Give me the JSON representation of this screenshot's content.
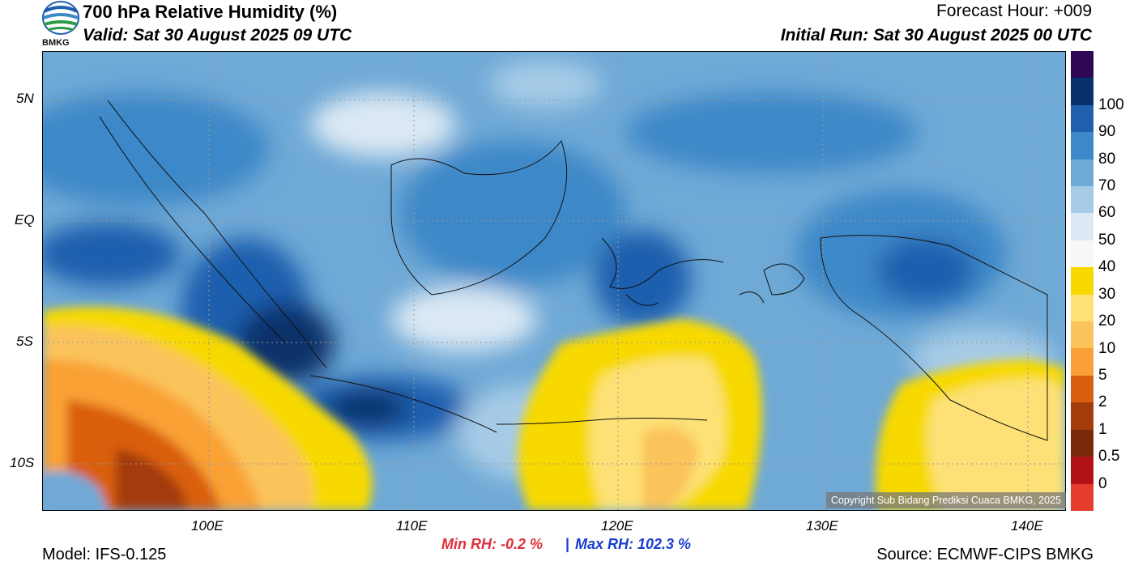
{
  "header": {
    "title": "700 hPa Relative Humidity (%)",
    "valid": "Valid: Sat 30 August 2025 09 UTC",
    "forecast_hour": "Forecast Hour: +009",
    "initial_run": "Initial Run: Sat 30 August 2025 00 UTC",
    "logo_text": "BMKG"
  },
  "map": {
    "lat_labels": [
      "5N",
      "EQ",
      "5S",
      "10S"
    ],
    "lon_labels": [
      "100E",
      "110E",
      "120E",
      "130E",
      "140E"
    ],
    "copyright": "Copyright Sub Bidang Prediksi Cuaca BMKG, 2025"
  },
  "colorbar": {
    "labels": [
      "100",
      "90",
      "80",
      "70",
      "60",
      "50",
      "40",
      "30",
      "20",
      "10",
      "5",
      "2",
      "1",
      "0.5",
      "0"
    ],
    "colors": [
      "#2e0854",
      "#08306b",
      "#1f5fae",
      "#3c88c8",
      "#6fa9d6",
      "#a6cbe6",
      "#dce9f4",
      "#f7f7f7",
      "#f7d900",
      "#fde176",
      "#fbc35c",
      "#f9a136",
      "#d95f0e",
      "#a33b0a",
      "#7a2a08",
      "#b01216",
      "#e43c2e"
    ]
  },
  "footer": {
    "min_rh": "Min RH:  -0.2 %",
    "separator": "|",
    "max_rh": "Max RH: 102.3 %",
    "model": "Model: IFS-0.125",
    "source": "Source: ECMWF-CIPS BMKG"
  }
}
